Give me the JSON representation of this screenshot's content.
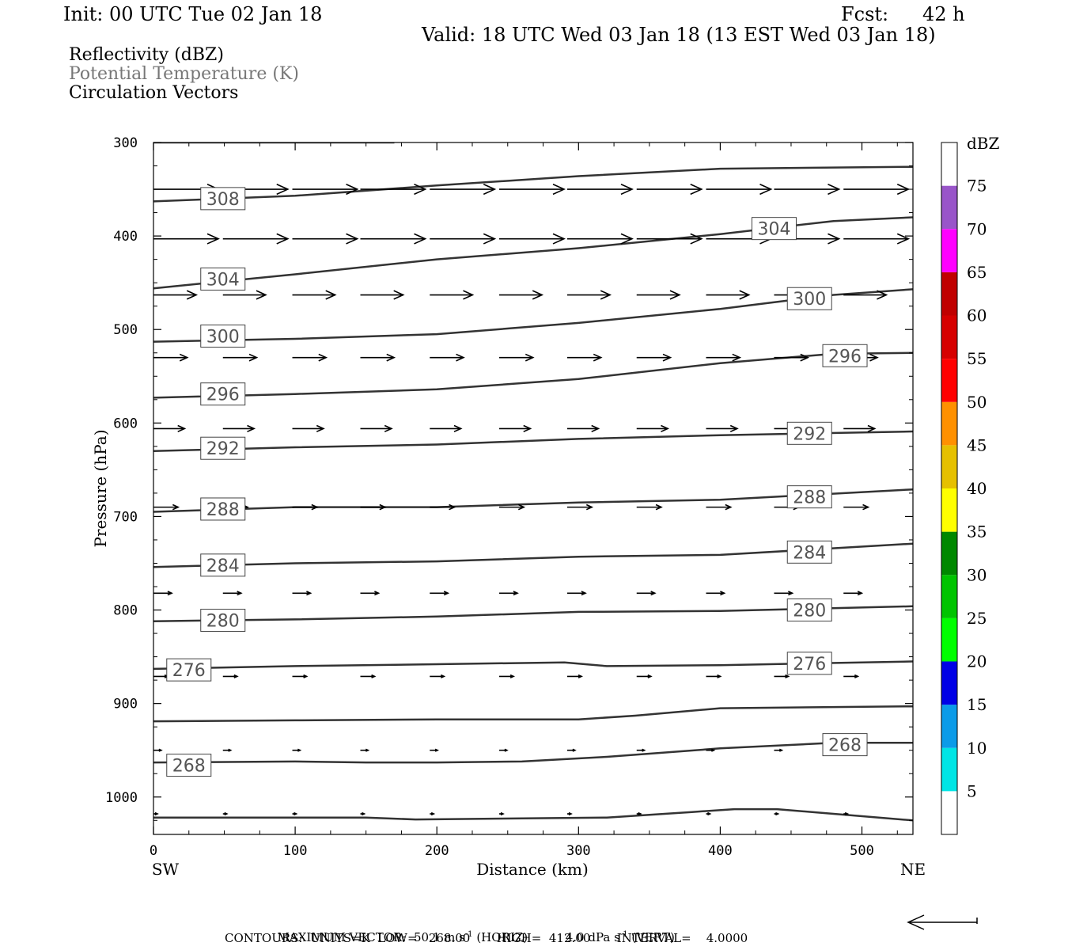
{
  "header": {
    "init": "Init: 00 UTC Tue 02 Jan 18",
    "fcst_label": "Fcst:",
    "fcst_value": "42 h",
    "valid": "Valid: 18 UTC Wed 03 Jan 18 (13 EST Wed 03 Jan 18)"
  },
  "fields": {
    "reflectivity": "Reflectivity (dBZ)",
    "theta": "Potential Temperature (K)",
    "vectors": "Circulation Vectors"
  },
  "footer": {
    "max_vector_label": "MAXIMUM VECTOR:",
    "max_horiz": "50.1 m s",
    "horiz_tag": "(HORIZ)",
    "max_vert": "4.0 dPa s",
    "vert_tag": "(VERT)",
    "exponent": "-1",
    "contours": "CONTOURS:  UNITS=K  LOW=   268.00       HIGH=  412.00       INTERVAL=    4.0000"
  },
  "colors": {
    "contour": "#333333",
    "vector": "#000000"
  },
  "chart_data": {
    "type": "cross-section",
    "xlabel": "Distance (km)",
    "ylabel": "Pressure (hPa)",
    "x_ends": [
      "SW",
      "NE"
    ],
    "xlim": [
      0,
      536
    ],
    "ylim": [
      300,
      1040
    ],
    "xticks": [
      0,
      100,
      200,
      300,
      400,
      500
    ],
    "yticks": [
      300,
      400,
      500,
      600,
      700,
      800,
      900,
      1000
    ],
    "theta_contours": [
      {
        "label": "308",
        "points": [
          [
            0,
            363
          ],
          [
            100,
            357
          ],
          [
            200,
            346
          ],
          [
            300,
            336
          ],
          [
            400,
            328
          ],
          [
            536,
            326
          ]
        ],
        "labels_at": [
          [
            49,
            360
          ]
        ]
      },
      {
        "label": "304",
        "points": [
          [
            0,
            456
          ],
          [
            100,
            441
          ],
          [
            200,
            425
          ],
          [
            300,
            413
          ],
          [
            400,
            398
          ],
          [
            480,
            384
          ],
          [
            536,
            380
          ]
        ],
        "labels_at": [
          [
            49,
            446
          ],
          [
            438,
            392
          ]
        ]
      },
      {
        "label": "300",
        "points": [
          [
            0,
            513
          ],
          [
            100,
            510
          ],
          [
            200,
            505
          ],
          [
            300,
            493
          ],
          [
            400,
            478
          ],
          [
            480,
            463
          ],
          [
            536,
            457
          ]
        ],
        "labels_at": [
          [
            49,
            507
          ],
          [
            463,
            467
          ]
        ]
      },
      {
        "label": "296",
        "points": [
          [
            0,
            573
          ],
          [
            100,
            569
          ],
          [
            200,
            564
          ],
          [
            300,
            553
          ],
          [
            400,
            536
          ],
          [
            480,
            526
          ],
          [
            536,
            525
          ]
        ],
        "labels_at": [
          [
            49,
            569
          ],
          [
            488,
            528
          ]
        ]
      },
      {
        "label": "292",
        "points": [
          [
            0,
            630
          ],
          [
            100,
            626
          ],
          [
            200,
            623
          ],
          [
            300,
            617
          ],
          [
            400,
            613
          ],
          [
            536,
            609
          ]
        ],
        "labels_at": [
          [
            49,
            627
          ],
          [
            463,
            611
          ]
        ]
      },
      {
        "label": "288",
        "points": [
          [
            0,
            695
          ],
          [
            100,
            690
          ],
          [
            200,
            690
          ],
          [
            300,
            685
          ],
          [
            400,
            682
          ],
          [
            536,
            671
          ]
        ],
        "labels_at": [
          [
            49,
            692
          ],
          [
            463,
            679
          ]
        ]
      },
      {
        "label": "284",
        "points": [
          [
            0,
            754
          ],
          [
            100,
            750
          ],
          [
            200,
            748
          ],
          [
            300,
            743
          ],
          [
            400,
            741
          ],
          [
            536,
            729
          ]
        ],
        "labels_at": [
          [
            49,
            752
          ],
          [
            463,
            738
          ]
        ]
      },
      {
        "label": "280",
        "points": [
          [
            0,
            812
          ],
          [
            100,
            810
          ],
          [
            200,
            807
          ],
          [
            300,
            802
          ],
          [
            400,
            801
          ],
          [
            536,
            796
          ]
        ],
        "labels_at": [
          [
            49,
            811
          ],
          [
            463,
            800
          ]
        ]
      },
      {
        "label": "276",
        "points": [
          [
            0,
            863
          ],
          [
            100,
            860
          ],
          [
            200,
            858
          ],
          [
            290,
            856
          ],
          [
            320,
            860
          ],
          [
            400,
            859
          ],
          [
            536,
            855
          ]
        ],
        "labels_at": [
          [
            25,
            864
          ],
          [
            463,
            857
          ]
        ]
      },
      {
        "label": "",
        "points": [
          [
            0,
            919
          ],
          [
            100,
            918
          ],
          [
            200,
            917
          ],
          [
            300,
            917
          ],
          [
            340,
            913
          ],
          [
            400,
            905
          ],
          [
            536,
            903
          ]
        ],
        "labels_at": []
      },
      {
        "label": "268",
        "points": [
          [
            0,
            963
          ],
          [
            100,
            962
          ],
          [
            150,
            963
          ],
          [
            200,
            963
          ],
          [
            260,
            962
          ],
          [
            320,
            957
          ],
          [
            400,
            948
          ],
          [
            480,
            942
          ],
          [
            536,
            942
          ]
        ],
        "labels_at": [
          [
            25,
            966
          ],
          [
            488,
            944
          ]
        ]
      },
      {
        "label": "",
        "points": [
          [
            0,
            1022
          ],
          [
            150,
            1022
          ],
          [
            185,
            1024
          ],
          [
            320,
            1022
          ],
          [
            380,
            1016
          ],
          [
            410,
            1013
          ],
          [
            440,
            1013
          ],
          [
            480,
            1018
          ],
          [
            536,
            1025
          ]
        ],
        "labels_at": []
      }
    ],
    "vector_rows": [
      {
        "p": 350,
        "u": 1.0
      },
      {
        "p": 403,
        "u": 1.0
      },
      {
        "p": 463,
        "u": 0.66
      },
      {
        "p": 530,
        "u": 0.52
      },
      {
        "p": 606,
        "u": 0.48
      },
      {
        "p": 690,
        "u": 0.38
      },
      {
        "p": 782,
        "u": 0.28
      },
      {
        "p": 871,
        "u": 0.22
      },
      {
        "p": 950,
        "u": 0.12
      },
      {
        "p": 1018,
        "u": 0.06
      }
    ],
    "vector_columns_km": [
      0,
      49,
      98,
      146,
      195,
      244,
      292,
      341,
      390,
      438,
      487
    ],
    "colorbar": {
      "label": "dBZ",
      "levels": [
        "5",
        "10",
        "15",
        "20",
        "25",
        "30",
        "35",
        "40",
        "45",
        "50",
        "55",
        "60",
        "65",
        "70",
        "75"
      ],
      "colors": [
        "#ffffff",
        "#00e5e5",
        "#0b9be8",
        "#0000e6",
        "#00ff00",
        "#00c400",
        "#008800",
        "#ffff00",
        "#e6c000",
        "#ff9000",
        "#ff0000",
        "#d60000",
        "#c00000",
        "#ff00ff",
        "#9955c9",
        "#ffffff"
      ]
    },
    "max_vector_arrow": "left"
  }
}
